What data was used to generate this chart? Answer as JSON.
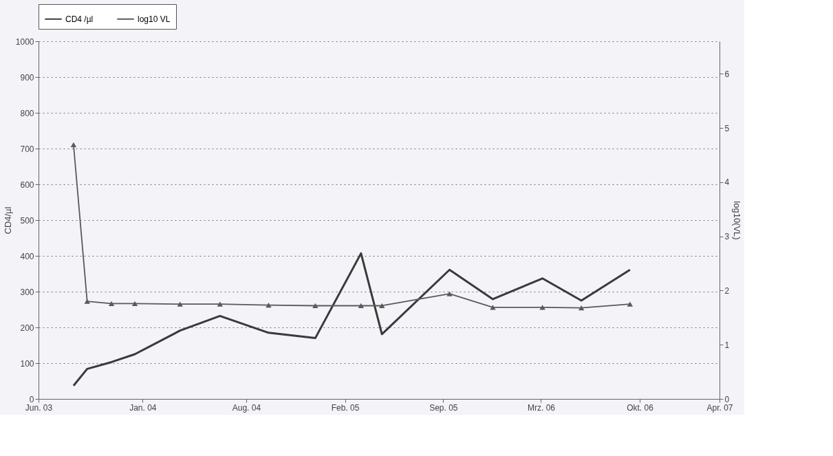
{
  "chart_data": {
    "type": "line",
    "ylabel": "CD4/µl",
    "y2label": "log10(VL)",
    "x": [
      "2003-08-12",
      "2003-09-09",
      "2003-10-29",
      "2003-12-16",
      "2004-03-18",
      "2004-06-08",
      "2004-09-16",
      "2004-12-21",
      "2005-03-25",
      "2005-05-07",
      "2005-09-23",
      "2005-12-21",
      "2006-04-02",
      "2006-06-21",
      "2006-09-29"
    ],
    "series": [
      {
        "name": "CD4 /µl",
        "color": "#3a3a3a",
        "marker": "none",
        "values": [
          37,
          84,
          103,
          125,
          191,
          232,
          185,
          170,
          407,
          181,
          361,
          279,
          337,
          275,
          361
        ]
      },
      {
        "name": "log10 VL",
        "color": "#5a5a5a",
        "marker": "triangle",
        "axis": "y2",
        "values": [
          4.69,
          1.8,
          1.76,
          1.76,
          1.75,
          1.75,
          1.73,
          1.72,
          1.72,
          1.72,
          1.94,
          1.69,
          1.69,
          1.68,
          1.75
        ]
      }
    ],
    "xlim": [
      "2003-06-01",
      "2007-04-01"
    ],
    "xticks": [
      {
        "value": "2003-06-01",
        "label": "Jun. 03"
      },
      {
        "value": "2004-01-01",
        "label": "Jan. 04"
      },
      {
        "value": "2004-08-01",
        "label": "Aug. 04"
      },
      {
        "value": "2005-02-20",
        "label": "Feb. 05"
      },
      {
        "value": "2005-09-10",
        "label": "Sep. 05"
      },
      {
        "value": "2006-03-30",
        "label": "Mrz. 06"
      },
      {
        "value": "2006-10-19",
        "label": "Okt. 06"
      },
      {
        "value": "2007-04-01",
        "label": "Apr. 07"
      }
    ],
    "ylim": [
      0,
      1000
    ],
    "yticks": [
      0,
      100,
      200,
      300,
      400,
      500,
      600,
      700,
      800,
      900,
      1000
    ],
    "y2lim": [
      0,
      6.6
    ],
    "y2ticks": [
      0,
      1,
      2,
      3,
      4,
      5,
      6
    ],
    "grid": "y",
    "legend": "top",
    "line_style": "solid"
  }
}
